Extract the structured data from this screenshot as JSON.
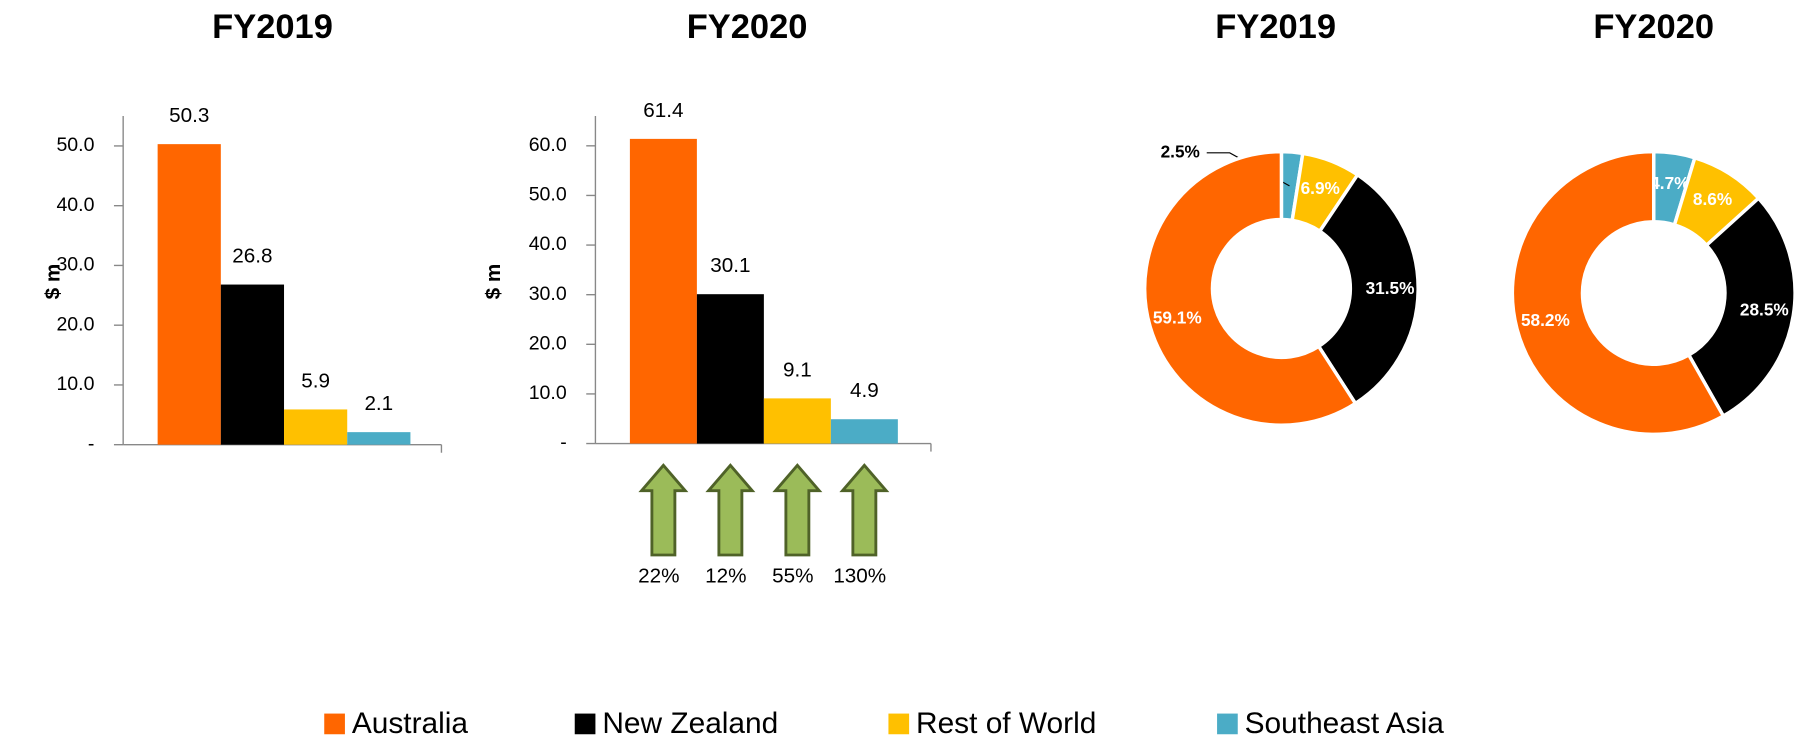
{
  "legend": [
    {
      "name": "Australia",
      "color": "#ff6600"
    },
    {
      "name": "New Zealand",
      "color": "#000000"
    },
    {
      "name": "Rest of World",
      "color": "#ffc000"
    },
    {
      "name": "Southeast Asia",
      "color": "#4bacc6"
    }
  ],
  "chart_data": [
    {
      "type": "bar",
      "title": "FY2019",
      "y_label": "$ m",
      "values": [
        50.3,
        26.8,
        5.9,
        2.1
      ],
      "colors": [
        "#ff6600",
        "#000000",
        "#ffc000",
        "#4bacc6"
      ],
      "ylim": [
        0,
        55
      ],
      "yticks": [
        {
          "value": 0,
          "label": "-"
        },
        {
          "value": 10,
          "label": "10.0"
        },
        {
          "value": 20,
          "label": "20.0"
        },
        {
          "value": 30,
          "label": "30.0"
        },
        {
          "value": 40,
          "label": "40.0"
        },
        {
          "value": 50,
          "label": "50.0"
        }
      ]
    },
    {
      "type": "bar",
      "title": "FY2020",
      "y_label": "$ m",
      "values": [
        61.4,
        30.1,
        9.1,
        4.9
      ],
      "colors": [
        "#ff6600",
        "#000000",
        "#ffc000",
        "#4bacc6"
      ],
      "ylim": [
        0,
        66
      ],
      "yticks": [
        {
          "value": 0,
          "label": "-"
        },
        {
          "value": 10,
          "label": "10.0"
        },
        {
          "value": 20,
          "label": "20.0"
        },
        {
          "value": 30,
          "label": "30.0"
        },
        {
          "value": 40,
          "label": "40.0"
        },
        {
          "value": 50,
          "label": "50.0"
        },
        {
          "value": 60,
          "label": "60.0"
        }
      ],
      "growth": [
        {
          "value": 22,
          "label": "22%"
        },
        {
          "value": 12,
          "label": "12%"
        },
        {
          "value": 55,
          "label": "55%"
        },
        {
          "value": 130,
          "label": "130%"
        }
      ]
    },
    {
      "type": "donut",
      "title": "FY2019",
      "values": [
        2.5,
        6.9,
        31.5,
        59.1
      ],
      "value_labels": [
        "2.5%",
        "6.9%",
        "31.5%",
        "59.1%"
      ],
      "colors": [
        "#4bacc6",
        "#ffc000",
        "#000000",
        "#ff6600"
      ]
    },
    {
      "type": "donut",
      "title": "FY2020",
      "values": [
        4.7,
        8.6,
        28.5,
        58.2
      ],
      "value_labels": [
        "4.7%",
        "8.6%",
        "28.5%",
        "58.2%"
      ],
      "colors": [
        "#4bacc6",
        "#ffc000",
        "#000000",
        "#ff6600"
      ]
    }
  ]
}
